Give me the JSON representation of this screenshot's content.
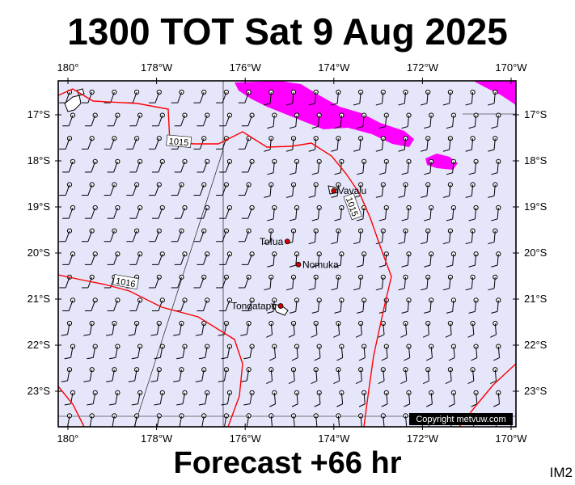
{
  "title": "1300 TOT Sat 9 Aug 2025",
  "footer": "Forecast +66 hr",
  "image_tag": "IM2",
  "copyright": "Copyright metvuw.com",
  "colors": {
    "ocean": "#e6e6fb",
    "isobar": "#ff0000",
    "rain": "#ff00ff",
    "city": "#d40000",
    "land": "#ffffff"
  },
  "lon_labels": [
    "180°",
    "178°W",
    "176°W",
    "174°W",
    "172°W",
    "170°W"
  ],
  "lat_labels": [
    "17°S",
    "18°S",
    "19°S",
    "20°S",
    "21°S",
    "22°S",
    "23°S"
  ],
  "places": [
    {
      "name": "Vava'u",
      "lon": -174.0,
      "lat": -18.65
    },
    {
      "name": "Tofua",
      "lon": -175.05,
      "lat": -19.75
    },
    {
      "name": "Nomuka",
      "lon": -174.8,
      "lat": -20.25
    },
    {
      "name": "Tongatapu",
      "lon": -175.2,
      "lat": -21.15
    }
  ],
  "isobar_labels": [
    {
      "text": "1015",
      "lon": -177.5,
      "lat": -17.6
    },
    {
      "text": "1015",
      "lon": -173.6,
      "lat": -19.0
    },
    {
      "text": "1016",
      "lon": -178.7,
      "lat": -20.65
    }
  ],
  "icons": {
    "wind": "wind-barb-icon",
    "town": "town-dot-icon"
  }
}
